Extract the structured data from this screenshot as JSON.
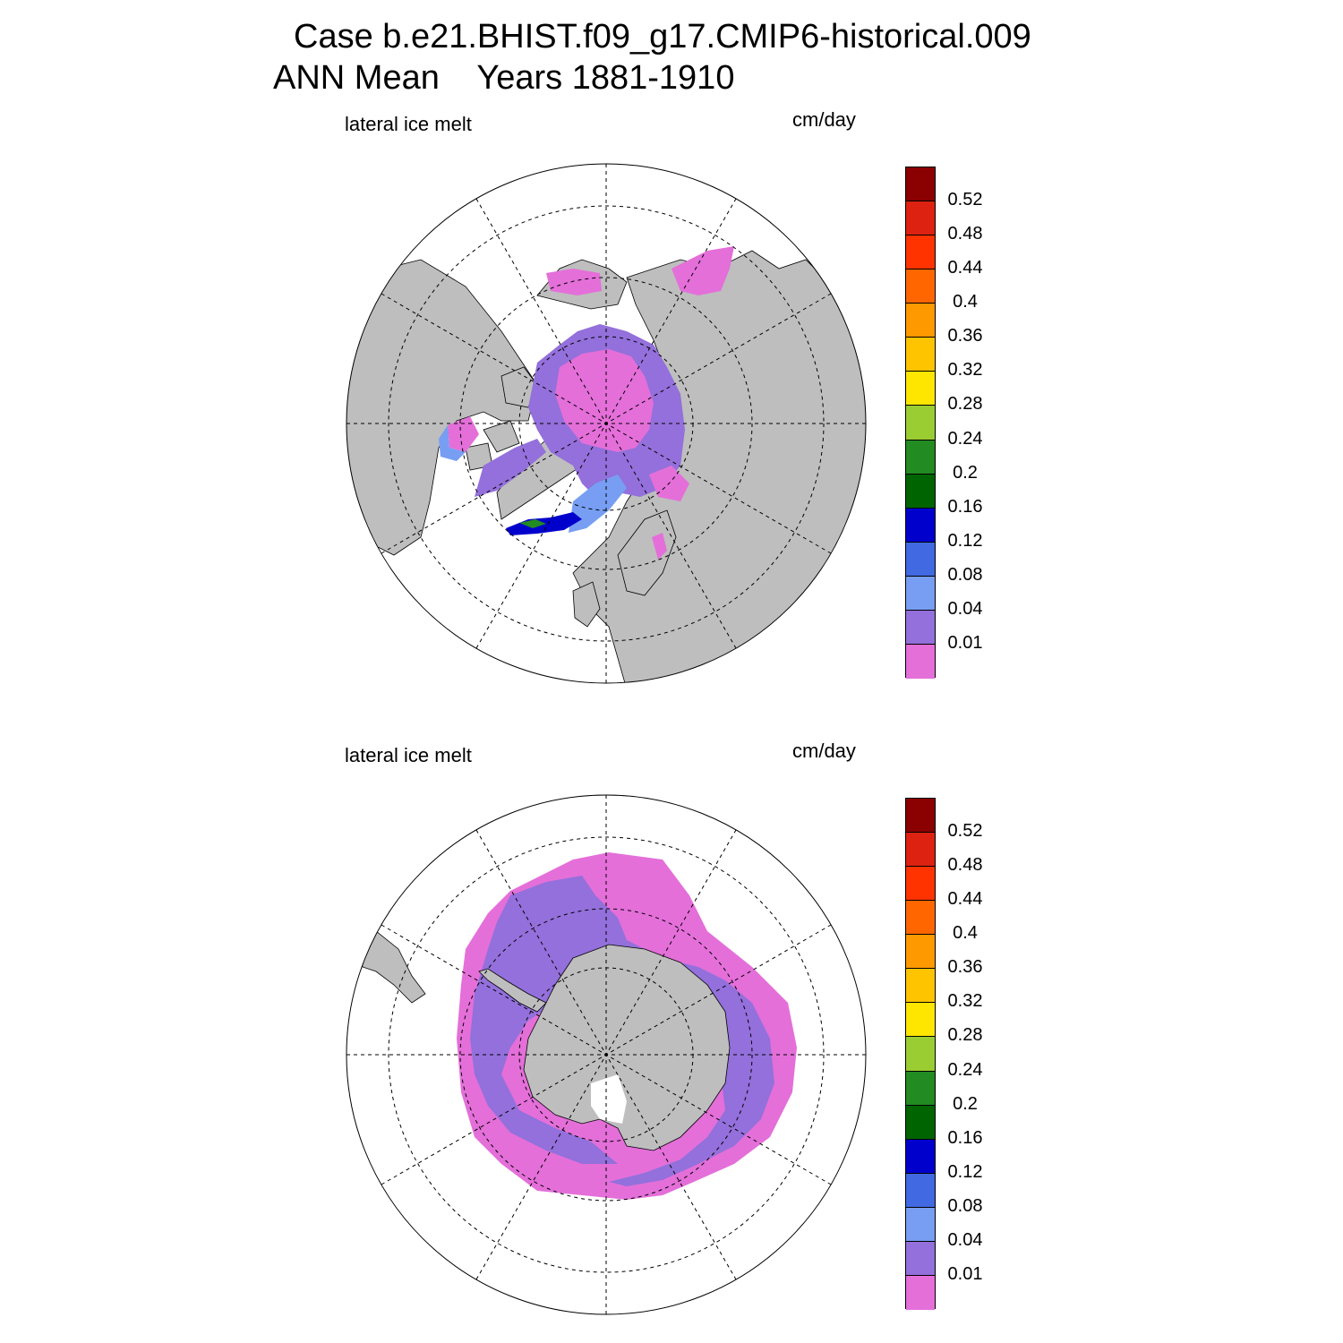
{
  "figure": {
    "title_line1": "Case b.e21.BHIST.f09_g17.CMIP6-historical.009",
    "title_line2": "ANN Mean    Years 1881-1910"
  },
  "colors": {
    "land": "#bebebe",
    "ocean_none": "#ffffff",
    "levels": [
      "#e46fd9",
      "#9370db",
      "#779ef3",
      "#4169e1",
      "#0000cd",
      "#006400",
      "#228b22",
      "#9acd32",
      "#ffe600",
      "#ffc400",
      "#ff9900",
      "#ff6600",
      "#ff3300",
      "#dd2211",
      "#8b0000"
    ]
  },
  "colorbar": {
    "labels": [
      "0.01",
      "0.04",
      "0.08",
      "0.12",
      "0.16",
      "0.2",
      "0.24",
      "0.28",
      "0.32",
      "0.36",
      "0.4",
      "0.44",
      "0.48",
      "0.52"
    ]
  },
  "panels": [
    {
      "id": "north",
      "variable": "lateral ice melt",
      "units": "cm/day",
      "projection": "north-polar-stereographic"
    },
    {
      "id": "south",
      "variable": "lateral ice melt",
      "units": "cm/day",
      "projection": "south-polar-stereographic"
    }
  ]
}
